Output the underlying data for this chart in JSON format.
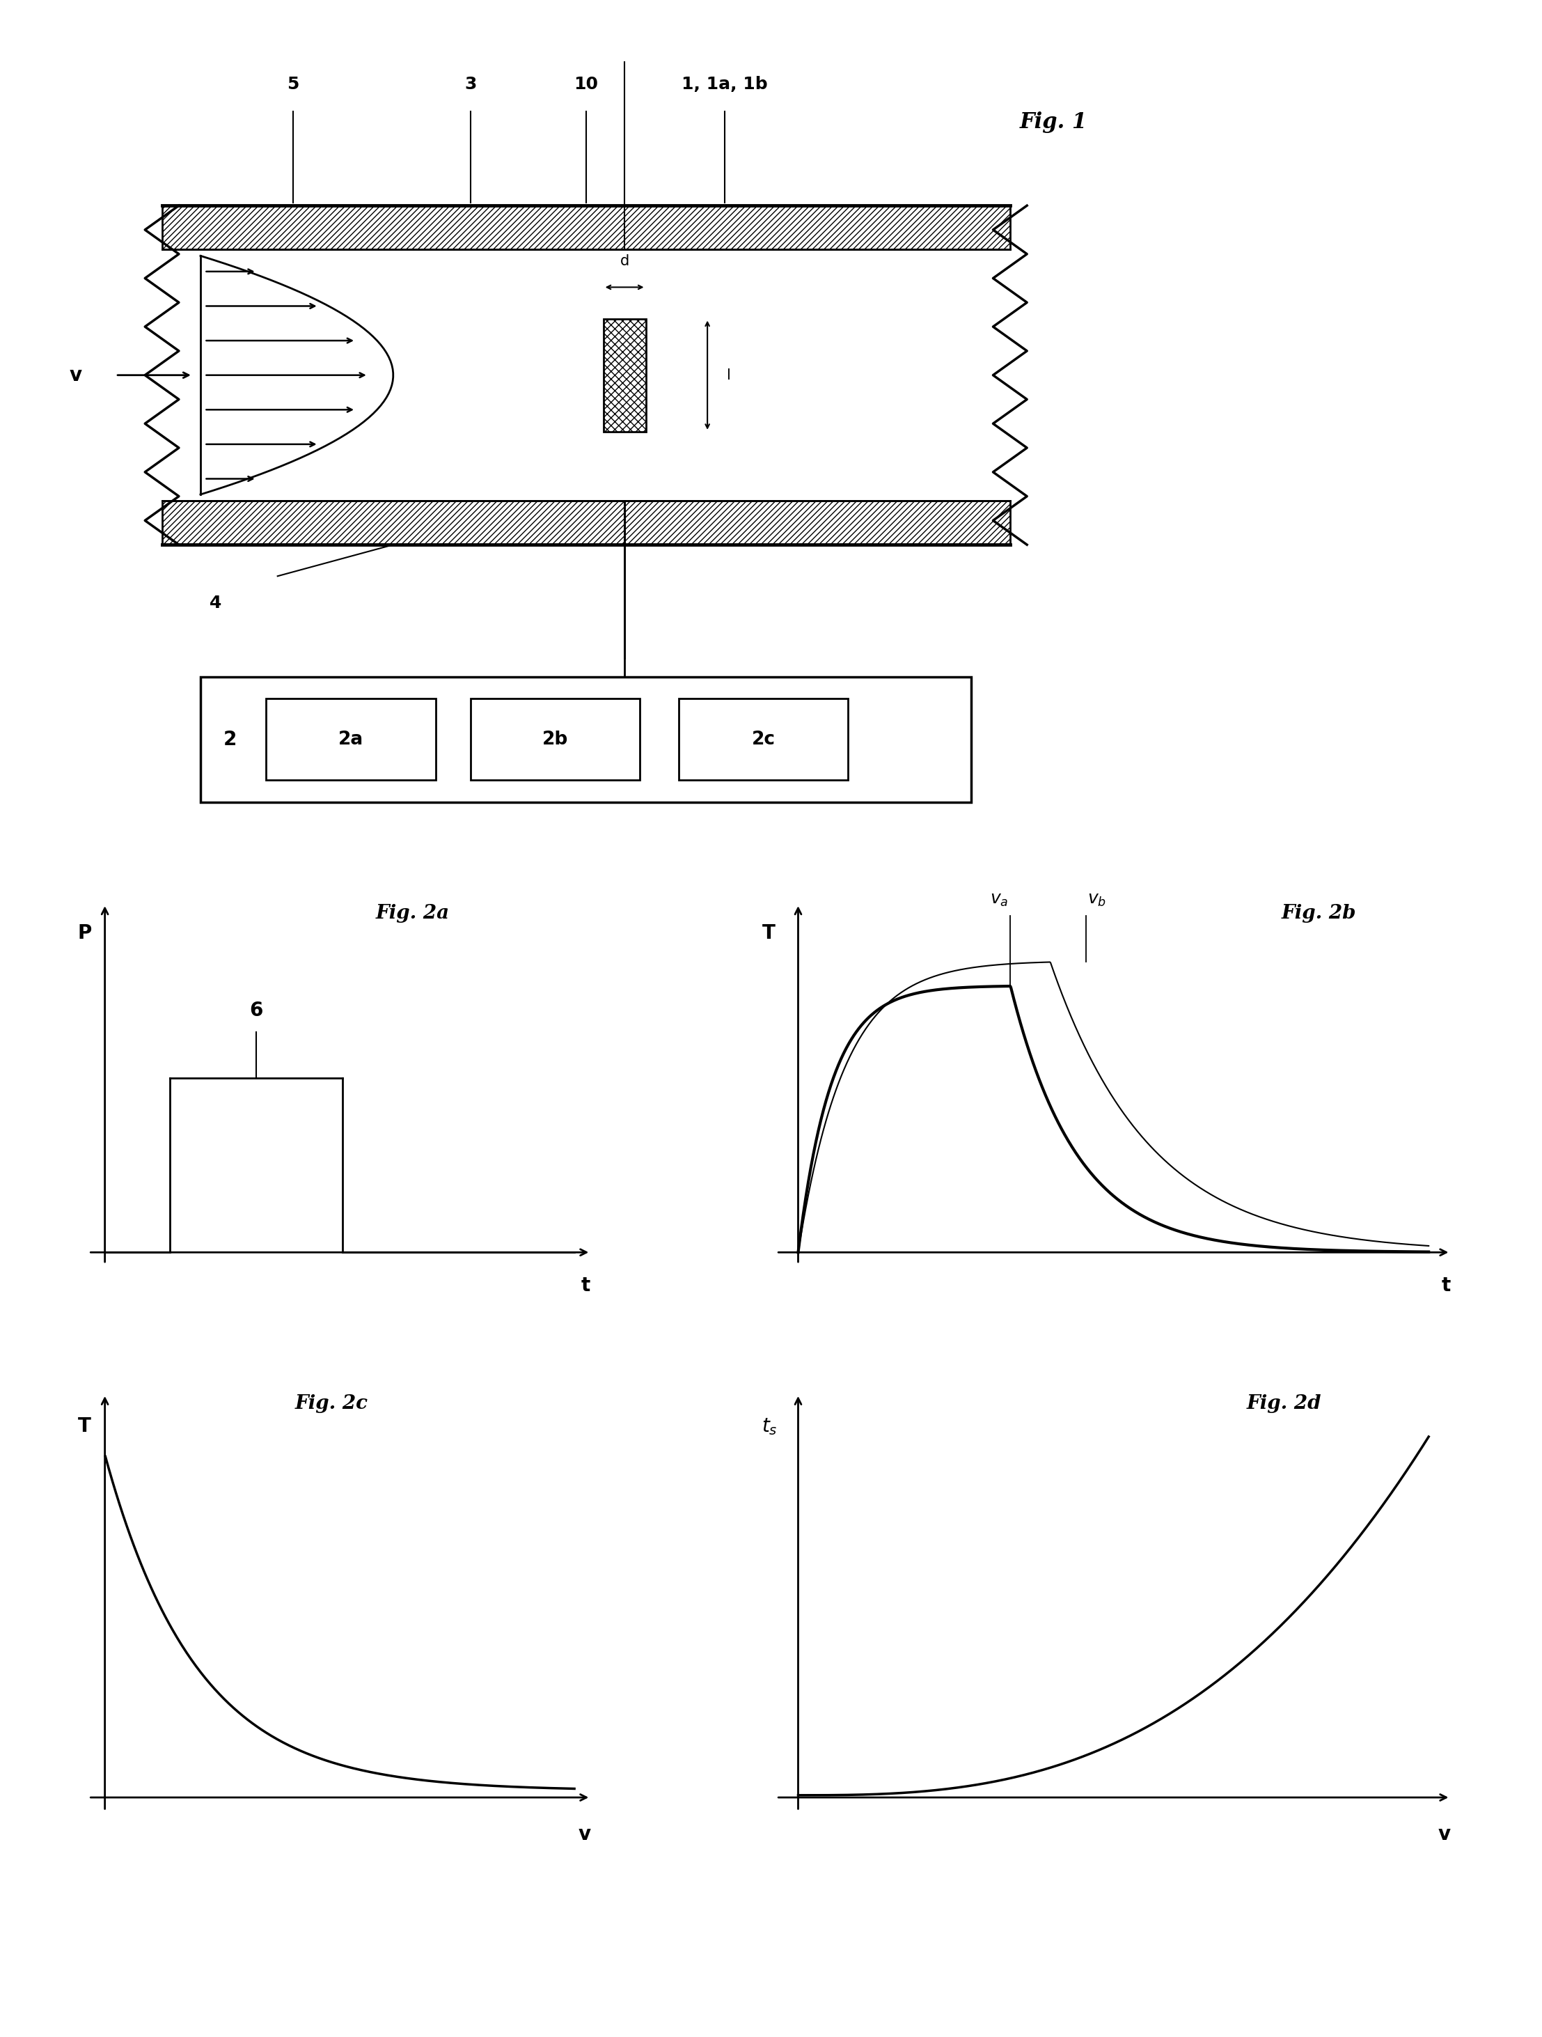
{
  "fig1_label": "Fig. 1",
  "fig2a_label": "Fig. 2a",
  "fig2b_label": "Fig. 2b",
  "fig2c_label": "Fig. 2c",
  "fig2d_label": "Fig. 2d",
  "label_5": "5",
  "label_3": "3",
  "label_10": "10",
  "label_1": "1, 1a, 1b",
  "label_4": "4",
  "label_2": "2",
  "label_2a": "2a",
  "label_2b": "2b",
  "label_2c": "2c",
  "label_v": "v",
  "label_d": "d",
  "label_l": "l",
  "label_6": "6",
  "label_P": "P",
  "label_t_2a": "t",
  "label_T_2b": "T",
  "label_t_2b": "t",
  "label_T_2c": "T",
  "label_v_2c": "v",
  "label_ts_2d": "t_s",
  "label_v_2d": "v",
  "bg_color": "#ffffff",
  "line_color": "#000000"
}
